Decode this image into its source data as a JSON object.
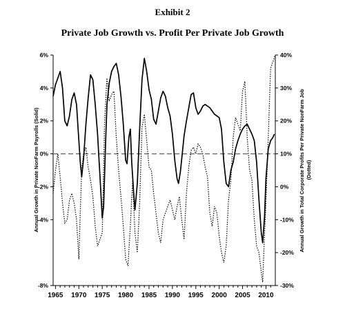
{
  "title": "Exhibit  2",
  "subtitle": "Private Job Growth vs. Profit Per Private Job Growth",
  "chart_data": {
    "type": "line",
    "title": "Private Job Growth vs. Profit Per Private Job Growth",
    "ylabel": "Annual Growth in Private NonFarm Payrolls (Solid)",
    "y2label": "Annual Growth in Total Corporate Profits Per Private NonFarm Job (Dotted)",
    "xlim": [
      1964.5,
      2012
    ],
    "ylim": [
      -8,
      6
    ],
    "y2lim": [
      -30,
      40
    ],
    "x_ticks": [
      "1965",
      "1970",
      "1975",
      "1980",
      "1985",
      "1990",
      "1995",
      "2000",
      "2005",
      "2010"
    ],
    "y_ticks": [
      6,
      4,
      2,
      0,
      -2,
      -4,
      -8
    ],
    "y_tick_labels": [
      "6%",
      "4%",
      "2%",
      "0%",
      "-2%",
      "-4%",
      "-8%"
    ],
    "y2_ticks": [
      40,
      30,
      20,
      10,
      0,
      -10,
      -20,
      -30
    ],
    "y2_tick_labels": [
      "40%",
      "30%",
      "20%",
      "10%",
      "0%",
      "-10%",
      "-20%",
      "-30%"
    ],
    "zero_line": "dashed",
    "grid": false,
    "series": [
      {
        "axis": "left",
        "style": "solid",
        "color": "#000000",
        "x": [
          1964.5,
          1965,
          1965.5,
          1966,
          1966.5,
          1967,
          1967.5,
          1968,
          1968.5,
          1969,
          1969.5,
          1970,
          1970.3,
          1970.6,
          1971,
          1971.5,
          1972,
          1972.5,
          1973,
          1973.5,
          1974,
          1974.5,
          1975,
          1975.3,
          1975.7,
          1976,
          1976.5,
          1977,
          1977.5,
          1978,
          1978.5,
          1979,
          1979.5,
          1980,
          1980.3,
          1980.7,
          1981,
          1981.3,
          1981.7,
          1982,
          1982.5,
          1983,
          1983.5,
          1984,
          1984.5,
          1985,
          1985.5,
          1986,
          1986.5,
          1987,
          1987.5,
          1988,
          1988.5,
          1989,
          1989.5,
          1990,
          1990.5,
          1991,
          1991.3,
          1991.7,
          1992,
          1992.5,
          1993,
          1993.5,
          1994,
          1994.5,
          1995,
          1995.5,
          1996,
          1996.5,
          1997,
          1997.5,
          1998,
          1998.5,
          1999,
          1999.5,
          2000,
          2000.5,
          2001,
          2001.5,
          2002,
          2002.5,
          2003,
          2003.5,
          2004,
          2004.5,
          2005,
          2005.5,
          2006,
          2006.5,
          2007,
          2007.5,
          2008,
          2008.5,
          2009,
          2009.3,
          2009.7,
          2010,
          2010.5,
          2011,
          2011.5,
          2011.8
        ],
        "values": [
          3.5,
          4.2,
          4.6,
          5.0,
          4.0,
          2.0,
          1.7,
          2.3,
          3.3,
          3.7,
          3.0,
          0.8,
          -0.5,
          -1.4,
          -0.3,
          1.8,
          3.4,
          4.8,
          4.5,
          3.0,
          1.2,
          -1.3,
          -3.9,
          -3.2,
          0.5,
          3.0,
          4.3,
          5.0,
          5.3,
          5.5,
          4.8,
          3.5,
          1.8,
          -0.4,
          -0.6,
          1.0,
          1.5,
          -0.5,
          -2.3,
          -3.4,
          -1.8,
          1.5,
          4.5,
          5.8,
          5.0,
          3.9,
          3.3,
          2.1,
          1.8,
          2.6,
          3.4,
          3.8,
          3.5,
          2.8,
          2.3,
          1.2,
          -0.4,
          -1.5,
          -1.8,
          -1.1,
          -0.3,
          1.1,
          2.0,
          2.8,
          3.6,
          3.7,
          2.8,
          2.4,
          2.6,
          2.9,
          3.0,
          2.9,
          2.8,
          2.6,
          2.4,
          2.3,
          2.2,
          1.5,
          -0.5,
          -1.8,
          -2.0,
          -1.0,
          -0.5,
          0.3,
          0.8,
          1.2,
          1.5,
          1.7,
          1.8,
          1.5,
          1.2,
          0.8,
          -0.5,
          -2.8,
          -4.8,
          -5.4,
          -3.8,
          -1.5,
          0.3,
          0.8,
          1.0,
          1.2
        ]
      },
      {
        "axis": "right",
        "style": "dotted",
        "color": "#000000",
        "x": [
          1964.5,
          1965,
          1965.5,
          1966,
          1966.5,
          1967,
          1967.5,
          1968,
          1968.5,
          1969,
          1969.5,
          1970,
          1970.3,
          1970.6,
          1971,
          1971.5,
          1972,
          1972.5,
          1973,
          1973.5,
          1974,
          1974.5,
          1975,
          1975.5,
          1976,
          1976.5,
          1977,
          1977.5,
          1978,
          1978.5,
          1979,
          1979.5,
          1980,
          1980.5,
          1981,
          1981.5,
          1982,
          1982.5,
          1983,
          1983.5,
          1984,
          1984.5,
          1985,
          1985.5,
          1986,
          1986.5,
          1987,
          1987.5,
          1988,
          1988.5,
          1989,
          1989.5,
          1990,
          1990.5,
          1991,
          1991.5,
          1992,
          1992.5,
          1993,
          1993.5,
          1994,
          1994.5,
          1995,
          1995.5,
          1996,
          1996.5,
          1997,
          1997.5,
          1998,
          1998.5,
          1999,
          1999.5,
          2000,
          2000.5,
          2001,
          2001.5,
          2002,
          2002.5,
          2003,
          2003.5,
          2004,
          2004.5,
          2005,
          2005.5,
          2006,
          2006.5,
          2007,
          2007.5,
          2008,
          2008.5,
          2009,
          2009.3,
          2009.6,
          2010,
          2010.5,
          2011,
          2011.5,
          2012
        ],
        "values": [
          -2,
          5,
          10,
          3,
          -5,
          -11,
          -10,
          -4,
          -2,
          -5,
          -10,
          -22,
          -8,
          5,
          10,
          12,
          6,
          2,
          -3,
          -12,
          -18,
          -16,
          -14,
          20,
          33,
          26,
          28,
          29,
          15,
          5,
          -3,
          -12,
          -22,
          -24,
          -12,
          2,
          -14,
          -20,
          -5,
          18,
          22,
          14,
          6,
          5,
          -2,
          -8,
          -14,
          -17,
          -10,
          -8,
          -6,
          -4,
          -7,
          -10,
          -6,
          -3,
          -10,
          -16,
          -2,
          6,
          11,
          12,
          10,
          13,
          12,
          10,
          6,
          3,
          -8,
          -12,
          -6,
          -8,
          -15,
          -20,
          -23,
          -18,
          -4,
          2,
          15,
          21,
          19,
          17,
          29,
          32,
          15,
          5,
          2,
          -10,
          -18,
          -20,
          -26,
          -29,
          -18,
          -5,
          15,
          36,
          38,
          40
        ]
      }
    ]
  }
}
